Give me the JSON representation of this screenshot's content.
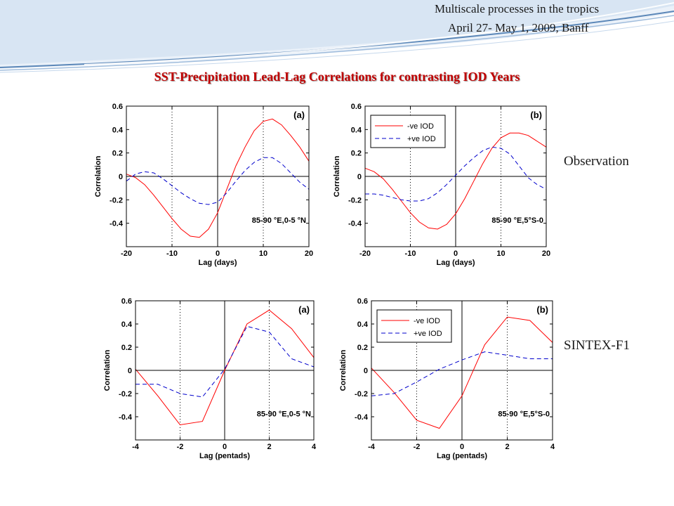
{
  "header": {
    "line1": "Multiscale processes in the tropics",
    "line2": "April 27- May 1, 2009, Banff"
  },
  "slide_title": "SST-Precipitation Lead-Lag Correlations for contrasting IOD Years",
  "row_labels": {
    "observation": "Observation",
    "model": "SINTEX-F1"
  },
  "colors": {
    "neg_iod": "#ff0000",
    "pos_iod": "#0000cc",
    "title": "#c00000",
    "swoosh": "#5b87b8"
  },
  "chart_data": [
    {
      "type": "line",
      "panel_tag": "(a)",
      "annotation": "85-90 °E,0-5 °N",
      "xlabel": "Lag (days)",
      "ylabel": "Correlation",
      "xlim": [
        -20,
        20
      ],
      "ylim": [
        -0.6,
        0.6
      ],
      "xticks": [
        -20,
        -10,
        0,
        10,
        20
      ],
      "yticks": [
        -0.4,
        -0.2,
        0,
        0.2,
        0.4,
        0.6
      ],
      "grid": "dotted",
      "legend": null,
      "series": [
        {
          "style": "solid",
          "color": "red",
          "x": [
            -20,
            -18,
            -16,
            -14,
            -12,
            -10,
            -8,
            -6,
            -4,
            -2,
            0,
            2,
            4,
            6,
            8,
            10,
            12,
            14,
            16,
            18,
            20
          ],
          "y": [
            0.02,
            -0.01,
            -0.07,
            -0.16,
            -0.26,
            -0.36,
            -0.45,
            -0.51,
            -0.52,
            -0.45,
            -0.31,
            -0.11,
            0.09,
            0.25,
            0.39,
            0.47,
            0.49,
            0.44,
            0.35,
            0.25,
            0.13
          ]
        },
        {
          "style": "dashed",
          "color": "blue",
          "x": [
            -20,
            -18,
            -16,
            -14,
            -12,
            -10,
            -8,
            -6,
            -4,
            -2,
            0,
            2,
            4,
            6,
            8,
            10,
            12,
            14,
            16,
            18,
            20
          ],
          "y": [
            -0.04,
            0.02,
            0.04,
            0.03,
            -0.02,
            -0.08,
            -0.14,
            -0.19,
            -0.23,
            -0.24,
            -0.22,
            -0.14,
            -0.04,
            0.05,
            0.12,
            0.16,
            0.16,
            0.11,
            0.03,
            -0.05,
            -0.11
          ]
        }
      ]
    },
    {
      "type": "line",
      "panel_tag": "(b)",
      "annotation": "85-90 °E,5°S-0",
      "xlabel": "Lag (days)",
      "ylabel": "Correlation",
      "xlim": [
        -20,
        20
      ],
      "ylim": [
        -0.6,
        0.6
      ],
      "xticks": [
        -20,
        -10,
        0,
        10,
        20
      ],
      "yticks": [
        -0.4,
        -0.2,
        0,
        0.2,
        0.4,
        0.6
      ],
      "grid": "dotted",
      "legend": "top-left",
      "series": [
        {
          "name": "-ve IOD",
          "style": "solid",
          "color": "red",
          "x": [
            -20,
            -18,
            -16,
            -14,
            -12,
            -10,
            -8,
            -6,
            -4,
            -2,
            0,
            2,
            4,
            6,
            8,
            10,
            12,
            14,
            16,
            18,
            20
          ],
          "y": [
            0.07,
            0.04,
            -0.02,
            -0.11,
            -0.21,
            -0.31,
            -0.39,
            -0.44,
            -0.45,
            -0.41,
            -0.32,
            -0.19,
            -0.04,
            0.11,
            0.24,
            0.33,
            0.37,
            0.37,
            0.35,
            0.3,
            0.25
          ]
        },
        {
          "name": "+ve IOD",
          "style": "dashed",
          "color": "blue",
          "x": [
            -20,
            -18,
            -16,
            -14,
            -12,
            -10,
            -8,
            -6,
            -4,
            -2,
            0,
            2,
            4,
            6,
            8,
            10,
            12,
            14,
            16,
            18,
            20
          ],
          "y": [
            -0.15,
            -0.15,
            -0.16,
            -0.18,
            -0.2,
            -0.21,
            -0.21,
            -0.19,
            -0.14,
            -0.07,
            0.01,
            0.09,
            0.16,
            0.22,
            0.25,
            0.24,
            0.19,
            0.09,
            -0.01,
            -0.07,
            -0.11
          ]
        }
      ]
    },
    {
      "type": "line",
      "panel_tag": "(a)",
      "annotation": "85-90 °E,0-5 °N",
      "xlabel": "Lag (pentads)",
      "ylabel": "Correlation",
      "xlim": [
        -4,
        4
      ],
      "ylim": [
        -0.6,
        0.6
      ],
      "xticks": [
        -4,
        -2,
        0,
        2,
        4
      ],
      "yticks": [
        -0.4,
        -0.2,
        0,
        0.2,
        0.4,
        0.6
      ],
      "grid": "dotted",
      "legend": null,
      "series": [
        {
          "style": "solid",
          "color": "red",
          "x": [
            -4,
            -3,
            -2,
            -1,
            0,
            1,
            2,
            3,
            4
          ],
          "y": [
            0.01,
            -0.22,
            -0.47,
            -0.44,
            0.0,
            0.4,
            0.52,
            0.36,
            0.11
          ]
        },
        {
          "style": "dashed",
          "color": "blue",
          "x": [
            -4,
            -3,
            -2,
            -1,
            0,
            1,
            2,
            3,
            4
          ],
          "y": [
            -0.12,
            -0.12,
            -0.2,
            -0.23,
            0.01,
            0.38,
            0.33,
            0.1,
            0.03
          ]
        }
      ]
    },
    {
      "type": "line",
      "panel_tag": "(b)",
      "annotation": "85-90 °E,5°S-0",
      "xlabel": "Lag (pentads)",
      "ylabel": "Correlation",
      "xlim": [
        -4,
        4
      ],
      "ylim": [
        -0.6,
        0.6
      ],
      "xticks": [
        -4,
        -2,
        0,
        2,
        4
      ],
      "yticks": [
        -0.4,
        -0.2,
        0,
        0.2,
        0.4,
        0.6
      ],
      "grid": "dotted",
      "legend": "top-left",
      "series": [
        {
          "name": "-ve IOD",
          "style": "solid",
          "color": "red",
          "x": [
            -4,
            -3,
            -2,
            -1,
            0,
            1,
            2,
            3,
            4
          ],
          "y": [
            0.02,
            -0.19,
            -0.43,
            -0.5,
            -0.22,
            0.22,
            0.46,
            0.43,
            0.24
          ]
        },
        {
          "name": "+ve IOD",
          "style": "dashed",
          "color": "blue",
          "x": [
            -4,
            -3,
            -2,
            -1,
            0,
            1,
            2,
            3,
            4
          ],
          "y": [
            -0.22,
            -0.2,
            -0.1,
            0.01,
            0.09,
            0.16,
            0.13,
            0.1,
            0.1
          ]
        }
      ]
    }
  ]
}
